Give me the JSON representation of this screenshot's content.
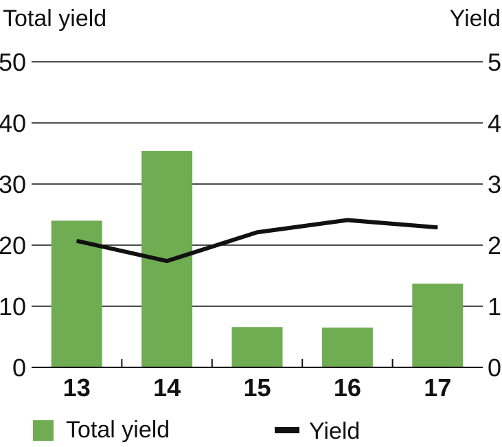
{
  "chart_data": {
    "type": "bar",
    "categories": [
      "13",
      "14",
      "15",
      "16",
      "17"
    ],
    "left_axis": {
      "label": "Total yield",
      "ticks": [
        "0",
        "10",
        "20",
        "30",
        "40",
        "50"
      ],
      "range": [
        0,
        50
      ]
    },
    "right_axis": {
      "label": "Yield",
      "ticks": [
        "0",
        "1",
        "2",
        "3",
        "4",
        "5"
      ],
      "range": [
        0,
        5
      ]
    },
    "series": [
      {
        "name": "Total yield",
        "kind": "bar",
        "axis": "left",
        "color": "#70ad52",
        "values": [
          24,
          35.4,
          6.6,
          6.5,
          13.7
        ]
      },
      {
        "name": "Yield",
        "kind": "line",
        "axis": "right",
        "color": "#111111",
        "values": [
          2.07,
          1.74,
          2.21,
          2.41,
          2.29
        ]
      }
    ],
    "grid": true,
    "legend_position": "bottom"
  }
}
